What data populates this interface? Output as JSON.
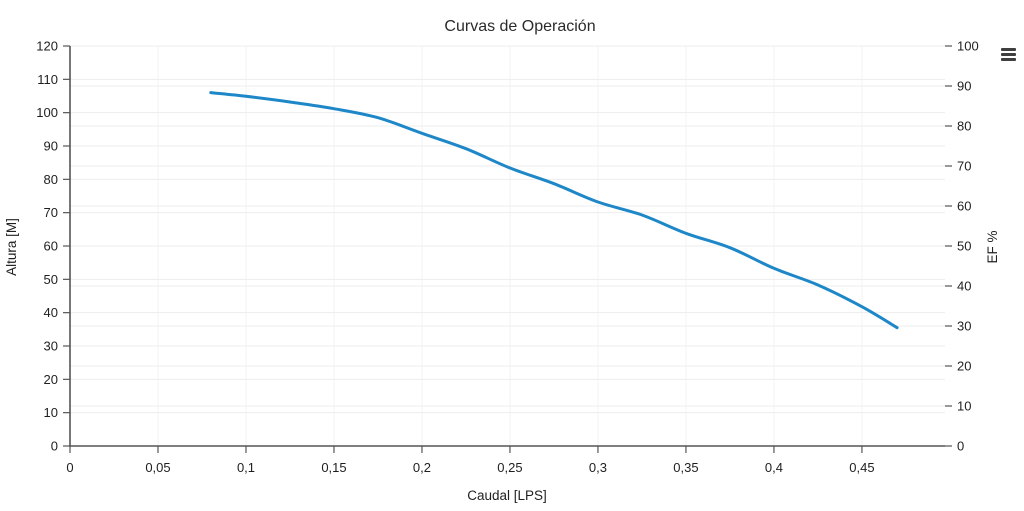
{
  "header": {
    "title": "Curvas de Operación"
  },
  "toolbar": {
    "menu_icon": "hamburger-menu-icon"
  },
  "chart_data": {
    "type": "line",
    "title": "Curvas de Operación",
    "xlabel": "Caudal [LPS]",
    "y_left_label": "Altura [M]",
    "y_right_label": "EF %",
    "xlim": [
      0,
      0.4972
    ],
    "ylim_left": [
      0,
      120
    ],
    "ylim_right": [
      0,
      100
    ],
    "grid": true,
    "legend": "none",
    "background": "#ffffff",
    "x_tick_values": [
      0,
      0.05,
      0.1,
      0.15,
      0.2,
      0.25,
      0.3,
      0.35,
      0.4,
      0.45
    ],
    "x_tick_labels": [
      "0",
      "0,05",
      "0,1",
      "0,15",
      "0,2",
      "0,25",
      "0,3",
      "0,35",
      "0,4",
      "0,45"
    ],
    "y_left_ticks": [
      0,
      10,
      20,
      30,
      40,
      50,
      60,
      70,
      80,
      90,
      100,
      110,
      120
    ],
    "y_right_ticks": [
      0,
      10,
      20,
      30,
      40,
      50,
      60,
      70,
      80,
      90,
      100
    ],
    "style": {
      "line_color": "#1e87c8",
      "line_width": 3,
      "axis_color": "#555555",
      "tick_label_color": "#1f1f1f",
      "axis_title_color": "#222222",
      "chart_title_color": "#2b2b2b",
      "grid_color_horizontal": "#ededed",
      "grid_color_vertical": "#f3f3f3"
    },
    "series": [
      {
        "name": "Altura",
        "y_axis": "left",
        "points": [
          [
            0.08,
            106.0
          ],
          [
            0.1,
            104.9
          ],
          [
            0.125,
            103.2
          ],
          [
            0.15,
            101.2
          ],
          [
            0.175,
            98.5
          ],
          [
            0.2,
            93.8
          ],
          [
            0.225,
            89.2
          ],
          [
            0.25,
            83.4
          ],
          [
            0.275,
            78.7
          ],
          [
            0.3,
            73.2
          ],
          [
            0.325,
            69.3
          ],
          [
            0.35,
            63.8
          ],
          [
            0.375,
            59.5
          ],
          [
            0.4,
            53.3
          ],
          [
            0.425,
            48.3
          ],
          [
            0.45,
            41.8
          ],
          [
            0.47,
            35.5
          ]
        ]
      }
    ]
  }
}
